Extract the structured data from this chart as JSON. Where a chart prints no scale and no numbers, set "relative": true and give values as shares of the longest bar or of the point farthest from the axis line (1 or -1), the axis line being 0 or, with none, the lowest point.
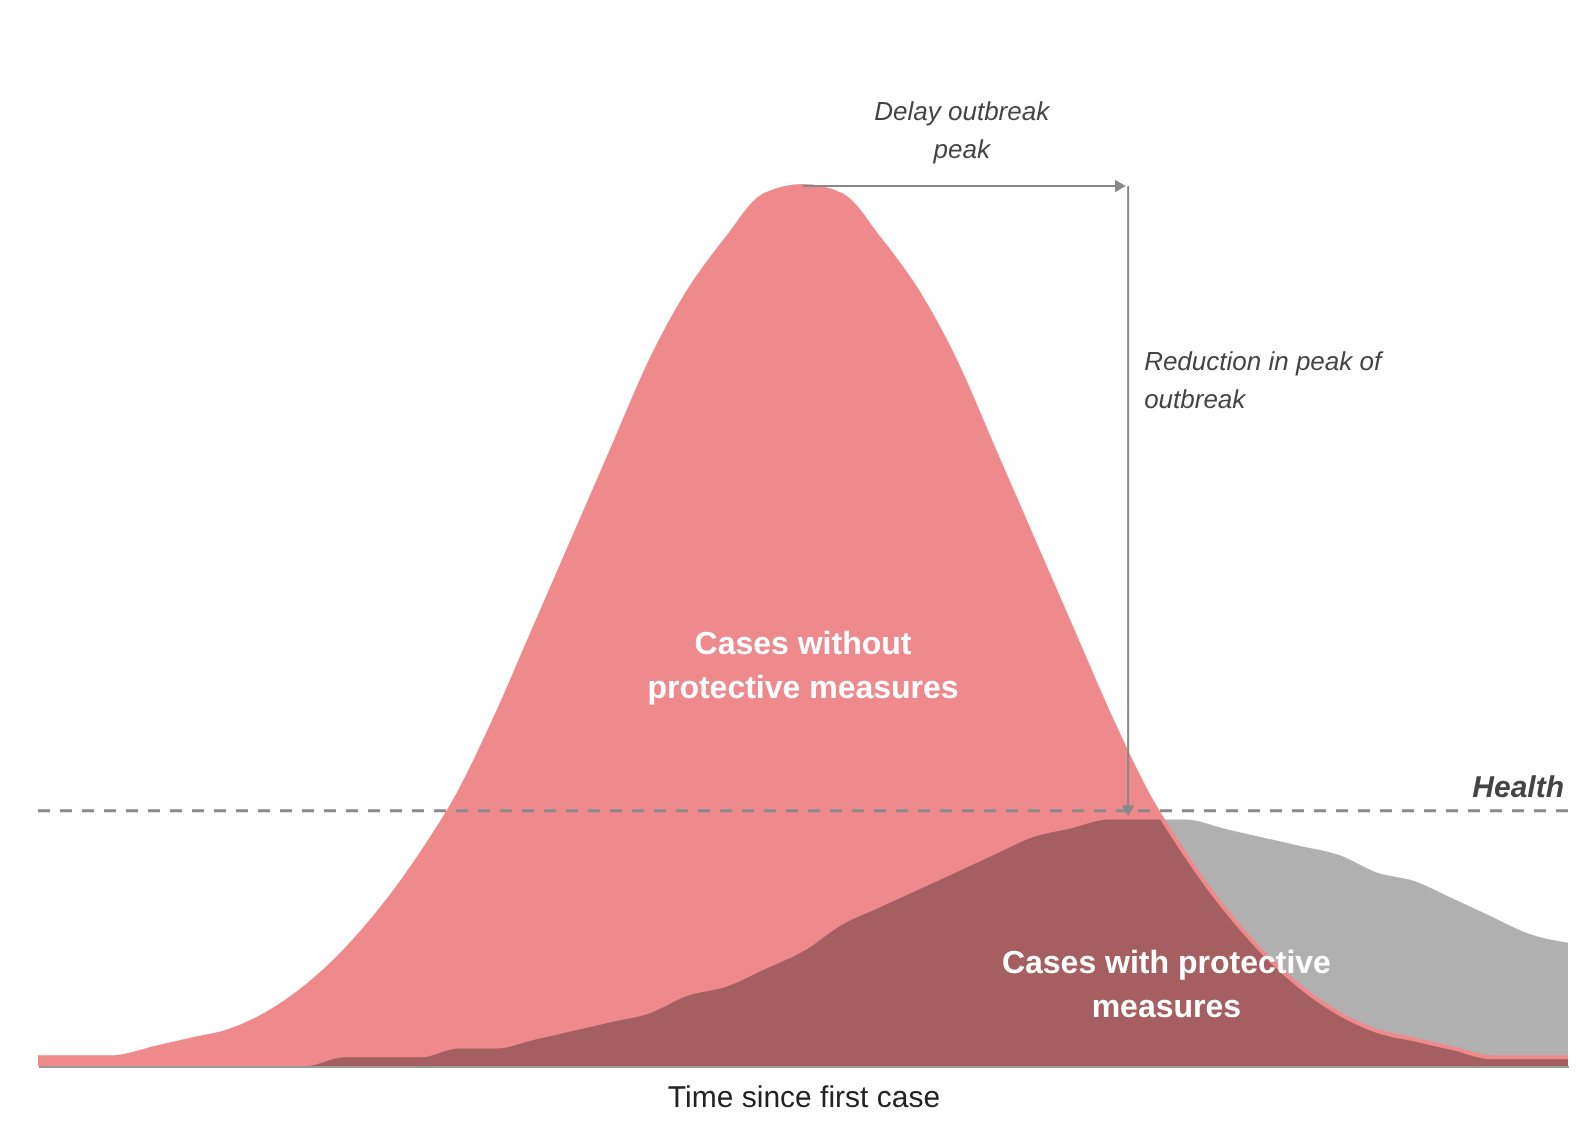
{
  "chart_data": {
    "type": "area",
    "relative": true,
    "xlabel": "Time since first case",
    "categories": [
      null,
      null,
      null,
      null,
      null,
      null,
      null,
      null,
      null,
      null,
      null,
      null,
      null,
      null,
      null,
      null,
      null,
      null,
      null,
      null,
      null,
      null,
      null,
      null,
      null,
      null,
      null,
      null,
      null,
      null,
      null,
      null,
      null,
      null,
      null,
      null,
      null,
      null,
      null,
      null,
      null
    ],
    "series": [
      {
        "name": "Cases without protective measures",
        "color": "#ef8a8c",
        "values": [
          0.01,
          0.01,
          0.01,
          0.02,
          0.03,
          0.04,
          0.06,
          0.09,
          0.13,
          0.18,
          0.24,
          0.31,
          0.4,
          0.5,
          0.6,
          0.7,
          0.8,
          0.88,
          0.94,
          0.99,
          1,
          0.99,
          0.94,
          0.88,
          0.8,
          0.7,
          0.6,
          0.5,
          0.4,
          0.31,
          0.24,
          0.18,
          0.13,
          0.09,
          0.06,
          0.04,
          0.03,
          0.02,
          0.01,
          0.01,
          0.01
        ]
      },
      {
        "name": "Cases with protective measures",
        "color": "#b0b0b0",
        "values": [
          0,
          0,
          0,
          0,
          0,
          0,
          0,
          0,
          0.01,
          0.01,
          0.01,
          0.02,
          0.02,
          0.03,
          0.04,
          0.05,
          0.06,
          0.08,
          0.09,
          0.11,
          0.13,
          0.16,
          0.18,
          0.2,
          0.22,
          0.24,
          0.26,
          0.27,
          0.28,
          0.28,
          0.28,
          0.27,
          0.26,
          0.25,
          0.24,
          0.22,
          0.21,
          0.19,
          0.17,
          0.15,
          0.14
        ]
      }
    ],
    "ref_lines": [
      {
        "axis": "y",
        "value": 0.29,
        "label": "Health",
        "color": "#8a8a8a",
        "line_style": "dashed"
      }
    ],
    "annotations": [
      "Delay outbreak peak",
      "Reduction in peak of outbreak"
    ]
  }
}
